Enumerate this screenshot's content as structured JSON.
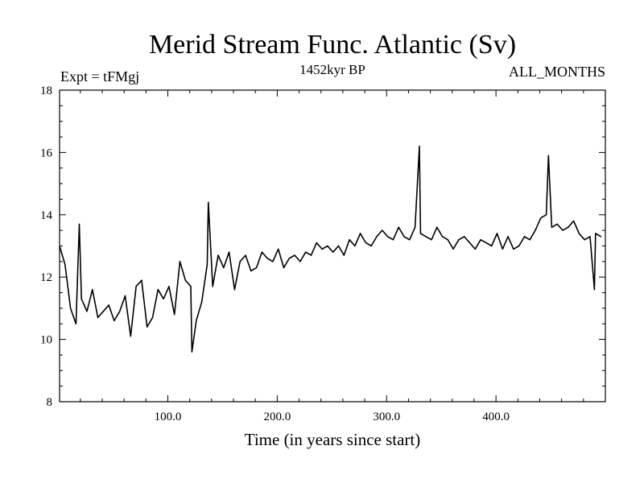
{
  "chart_data": {
    "type": "line",
    "title": "Merid Stream Func. Atlantic (Sv)",
    "subtitle": "1452kyr BP",
    "annotation_left": "Expt = tFMgj",
    "annotation_right": "ALL_MONTHS",
    "xlabel": "Time (in years since start)",
    "ylabel": "",
    "xlim": [
      1,
      500
    ],
    "ylim": [
      8,
      18
    ],
    "xticks": [
      100,
      200,
      300,
      400
    ],
    "xtick_labels": [
      "100.0",
      "200.0",
      "300.0",
      "400.0"
    ],
    "yticks": [
      8,
      10,
      12,
      14,
      16,
      18
    ],
    "ytick_labels": [
      "8",
      "10",
      "12",
      "14",
      "16",
      "18"
    ],
    "x_minor_step": 20,
    "y_minor_step": 0.5,
    "grid": false,
    "color": "#000000",
    "series": [
      {
        "name": "Merid Stream Func. Atlantic",
        "x_start": 1,
        "x_step": 5,
        "values": [
          13.0,
          12.4,
          11.0,
          10.5,
          11.3,
          10.9,
          11.6,
          10.7,
          10.9,
          11.1,
          10.6,
          10.9,
          11.4,
          10.1,
          11.7,
          11.9,
          10.4,
          10.7,
          11.6,
          11.3,
          11.7,
          10.8,
          12.5,
          11.9,
          11.7,
          10.6,
          11.2,
          12.4,
          11.7,
          12.7,
          12.3,
          12.8,
          11.6,
          12.5,
          12.7,
          12.2,
          12.3,
          12.8,
          12.6,
          12.5,
          12.9,
          12.3,
          12.6,
          12.7,
          12.5,
          12.8,
          12.7,
          13.1,
          12.9,
          13.0,
          12.8,
          13.0,
          12.7,
          13.2,
          13.0,
          13.4,
          13.1,
          13.0,
          13.3,
          13.5,
          13.3,
          13.2,
          13.6,
          13.3,
          13.2,
          13.6,
          13.4,
          13.3,
          13.2,
          13.6,
          13.3,
          13.2,
          12.9,
          13.2,
          13.3,
          13.1,
          12.9,
          13.2,
          13.1,
          13.0,
          13.4,
          12.9,
          13.3,
          12.9,
          13.0,
          13.3,
          13.2,
          13.5,
          13.9,
          14.0,
          13.6,
          13.7,
          13.5,
          13.6,
          13.8,
          13.4,
          13.2,
          13.3,
          13.4,
          13.3
        ]
      }
    ],
    "notable_points": [
      {
        "x": 19,
        "y": 13.7
      },
      {
        "x": 122,
        "y": 9.6
      },
      {
        "x": 137,
        "y": 14.4
      },
      {
        "x": 330,
        "y": 16.2
      },
      {
        "x": 448,
        "y": 15.9
      },
      {
        "x": 490,
        "y": 11.6
      }
    ]
  }
}
